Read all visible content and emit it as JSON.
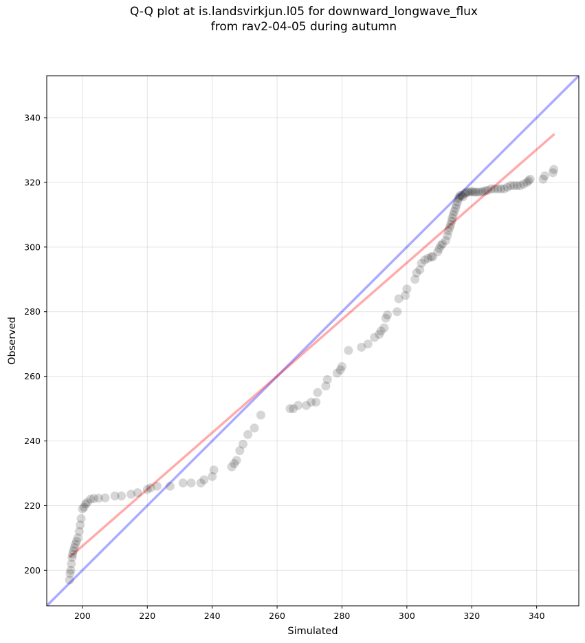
{
  "chart_data": {
    "type": "scatter",
    "title_line1": "Q-Q plot at is.landsvirkjun.l05 for downward_longwave_flux",
    "title_line2": "from rav2-04-05 during autumn",
    "xlabel": "Simulated",
    "ylabel": "Observed",
    "xlim": [
      189,
      353
    ],
    "ylim": [
      189,
      353
    ],
    "xticks": [
      200,
      220,
      240,
      260,
      280,
      300,
      320,
      340
    ],
    "yticks": [
      200,
      220,
      240,
      260,
      280,
      300,
      320,
      340
    ],
    "grid": true,
    "colors": {
      "points": "#000000",
      "identity_line": "#0000ff",
      "fit_line": "#ff0000"
    },
    "identity_line": {
      "from": [
        189,
        189
      ],
      "to": [
        353,
        353
      ]
    },
    "fit_line": {
      "from": [
        196,
        204
      ],
      "to": [
        345.5,
        335
      ]
    },
    "points": [
      [
        196.0,
        197.0
      ],
      [
        196.2,
        199.0
      ],
      [
        196.4,
        200.0
      ],
      [
        196.6,
        202.0
      ],
      [
        196.8,
        204.0
      ],
      [
        197.0,
        205.0
      ],
      [
        197.2,
        206.0
      ],
      [
        197.5,
        207.0
      ],
      [
        197.8,
        208.0
      ],
      [
        198.2,
        209.0
      ],
      [
        198.6,
        210.0
      ],
      [
        199.0,
        212.0
      ],
      [
        199.3,
        214.0
      ],
      [
        199.6,
        216.0
      ],
      [
        200.0,
        219.0
      ],
      [
        200.5,
        219.5
      ],
      [
        201.0,
        220.5
      ],
      [
        201.5,
        221.0
      ],
      [
        202.5,
        222.0
      ],
      [
        203.5,
        222.2
      ],
      [
        205.0,
        222.3
      ],
      [
        207.0,
        222.4
      ],
      [
        210.0,
        223.0
      ],
      [
        212.0,
        223.0
      ],
      [
        215.0,
        223.5
      ],
      [
        217.0,
        224.0
      ],
      [
        220.0,
        225.0
      ],
      [
        221.0,
        225.5
      ],
      [
        223.0,
        226.0
      ],
      [
        227.0,
        226.0
      ],
      [
        231.0,
        227.0
      ],
      [
        233.5,
        227.0
      ],
      [
        236.5,
        227.0
      ],
      [
        237.5,
        228.0
      ],
      [
        240.0,
        229.0
      ],
      [
        240.5,
        231.0
      ],
      [
        246.0,
        232.0
      ],
      [
        246.8,
        233.0
      ],
      [
        247.5,
        234.0
      ],
      [
        248.5,
        237.0
      ],
      [
        249.5,
        239.0
      ],
      [
        251.0,
        242.0
      ],
      [
        253.0,
        244.0
      ],
      [
        255.0,
        248.0
      ],
      [
        264.0,
        250.0
      ],
      [
        265.0,
        250.0
      ],
      [
        266.5,
        251.0
      ],
      [
        269.0,
        251.0
      ],
      [
        270.5,
        252.0
      ],
      [
        272.0,
        252.0
      ],
      [
        272.5,
        255.0
      ],
      [
        275.0,
        257.0
      ],
      [
        275.5,
        259.0
      ],
      [
        278.5,
        261.0
      ],
      [
        279.5,
        262.0
      ],
      [
        280.0,
        263.0
      ],
      [
        282.0,
        268.0
      ],
      [
        286.0,
        269.0
      ],
      [
        288.0,
        270.0
      ],
      [
        290.0,
        272.0
      ],
      [
        291.5,
        273.0
      ],
      [
        292.0,
        274.0
      ],
      [
        293.0,
        275.0
      ],
      [
        293.5,
        278.0
      ],
      [
        294.0,
        279.0
      ],
      [
        297.0,
        280.0
      ],
      [
        297.5,
        284.0
      ],
      [
        299.5,
        285.0
      ],
      [
        300.0,
        287.0
      ],
      [
        302.5,
        290.0
      ],
      [
        303.0,
        292.0
      ],
      [
        304.0,
        293.0
      ],
      [
        304.5,
        295.0
      ],
      [
        305.5,
        296.0
      ],
      [
        306.5,
        296.5
      ],
      [
        307.5,
        297.0
      ],
      [
        308.0,
        297.0
      ],
      [
        309.5,
        298.5
      ],
      [
        310.0,
        299.5
      ],
      [
        310.5,
        300.5
      ],
      [
        311.0,
        301.0
      ],
      [
        312.0,
        302.0
      ],
      [
        312.5,
        303.5
      ],
      [
        312.8,
        305.0
      ],
      [
        313.2,
        306.0
      ],
      [
        313.5,
        307.0
      ],
      [
        313.8,
        308.0
      ],
      [
        314.0,
        309.0
      ],
      [
        314.3,
        310.0
      ],
      [
        314.6,
        311.0
      ],
      [
        315.0,
        312.0
      ],
      [
        315.3,
        313.0
      ],
      [
        315.6,
        314.0
      ],
      [
        315.9,
        315.0
      ],
      [
        316.2,
        315.5
      ],
      [
        316.5,
        316.0
      ],
      [
        317.0,
        316.0
      ],
      [
        317.3,
        315.5
      ],
      [
        317.8,
        316.5
      ],
      [
        318.2,
        316.8
      ],
      [
        318.8,
        317.0
      ],
      [
        319.3,
        317.0
      ],
      [
        320.0,
        317.2
      ],
      [
        320.6,
        317.0
      ],
      [
        321.2,
        317.0
      ],
      [
        322.0,
        317.0
      ],
      [
        322.8,
        317.0
      ],
      [
        323.5,
        317.2
      ],
      [
        324.3,
        317.4
      ],
      [
        325.0,
        317.6
      ],
      [
        326.0,
        318.0
      ],
      [
        327.0,
        318.0
      ],
      [
        328.0,
        318.0
      ],
      [
        329.0,
        318.0
      ],
      [
        330.0,
        318.0
      ],
      [
        331.0,
        318.5
      ],
      [
        332.0,
        319.0
      ],
      [
        333.0,
        319.0
      ],
      [
        334.0,
        319.0
      ],
      [
        335.0,
        319.0
      ],
      [
        336.0,
        319.5
      ],
      [
        337.0,
        320.0
      ],
      [
        337.5,
        320.5
      ],
      [
        338.0,
        321.0
      ],
      [
        342.0,
        321.0
      ],
      [
        342.5,
        322.0
      ],
      [
        345.0,
        323.0
      ],
      [
        345.3,
        324.0
      ]
    ]
  }
}
